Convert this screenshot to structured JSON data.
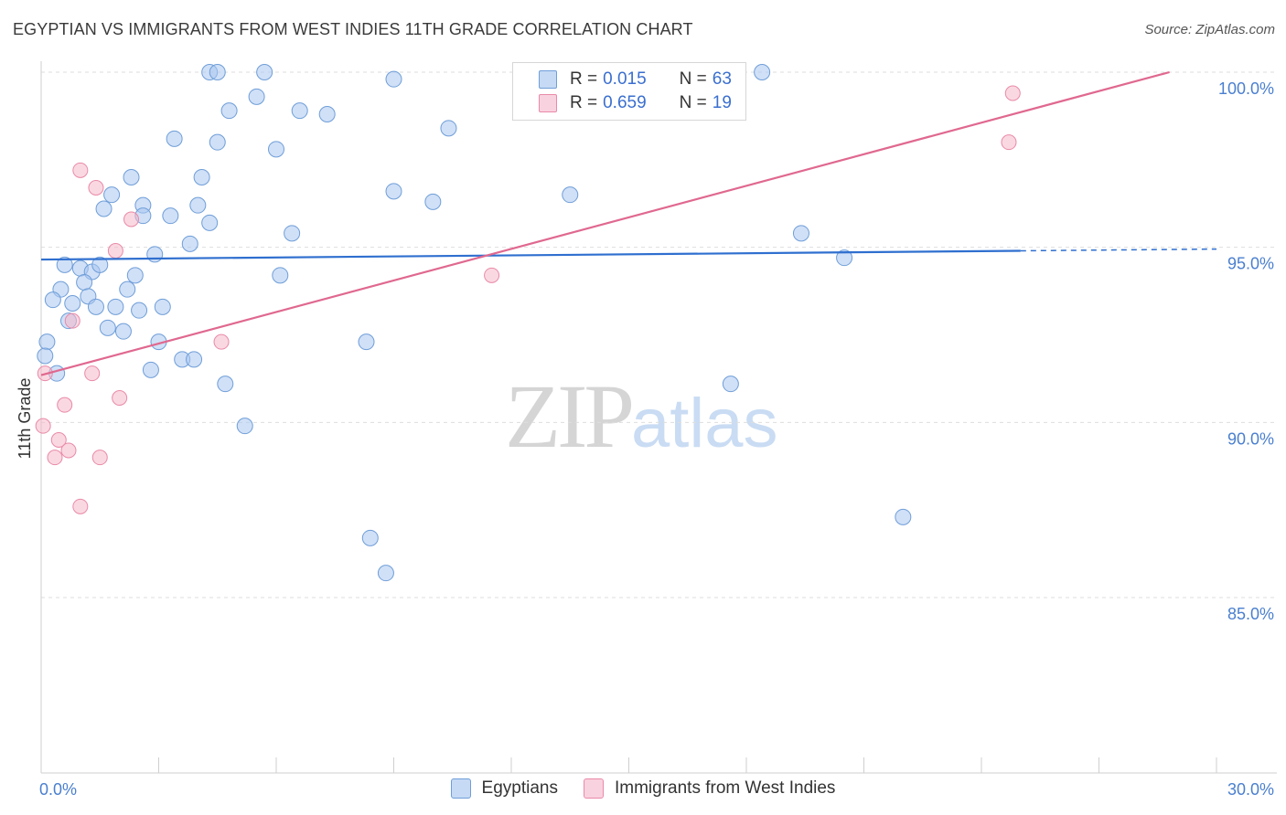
{
  "header": {
    "title": "EGYPTIAN VS IMMIGRANTS FROM WEST INDIES 11TH GRADE CORRELATION CHART",
    "source": "Source: ZipAtlas.com"
  },
  "watermark": {
    "zip": "ZIP",
    "atlas": "atlas"
  },
  "legend": {
    "rows": [
      {
        "r_label": "R =",
        "r_value": "0.015",
        "n_label": "N =",
        "n_value": "63",
        "color": "#a9c7f0"
      },
      {
        "r_label": "R =",
        "r_value": "0.659",
        "n_label": "N =",
        "n_value": "19",
        "color": "#f5b8cb"
      }
    ]
  },
  "bottom_legend": [
    {
      "label": "Egyptians",
      "color": "#a9c7f0"
    },
    {
      "label": "Immigrants from West Indies",
      "color": "#f5b8cb"
    }
  ],
  "chart_data": {
    "type": "scatter",
    "title": "EGYPTIAN VS IMMIGRANTS FROM WEST INDIES 11TH GRADE CORRELATION CHART",
    "xlabel": "",
    "ylabel": "11th Grade",
    "xlim": [
      0.0,
      30.0
    ],
    "ylim": [
      80.0,
      100.5
    ],
    "x_tick_labels": [
      {
        "value": 0.0,
        "label": "0.0%"
      },
      {
        "value": 30.0,
        "label": "30.0%"
      }
    ],
    "y_tick_labels": [
      {
        "value": 100.0,
        "label": "100.0%"
      },
      {
        "value": 95.0,
        "label": "95.0%"
      },
      {
        "value": 90.0,
        "label": "90.0%"
      },
      {
        "value": 85.0,
        "label": "85.0%"
      }
    ],
    "grid": true,
    "series": [
      {
        "name": "Egyptians",
        "color": "#a9c7f0",
        "edge": "#6f9ed8",
        "trend": {
          "x0": 0.0,
          "y0": 94.65,
          "x1": 25.0,
          "y1": 94.9,
          "dash_to_x": 30.0,
          "dash_to_y": 94.95,
          "color": "#2f6fcf"
        },
        "points": [
          {
            "x": 4.3,
            "y": 100.0
          },
          {
            "x": 4.5,
            "y": 100.0
          },
          {
            "x": 5.7,
            "y": 100.0
          },
          {
            "x": 9.0,
            "y": 99.8
          },
          {
            "x": 18.4,
            "y": 100.0
          },
          {
            "x": 5.5,
            "y": 99.3
          },
          {
            "x": 4.8,
            "y": 98.9
          },
          {
            "x": 6.6,
            "y": 98.9
          },
          {
            "x": 7.3,
            "y": 98.8
          },
          {
            "x": 10.4,
            "y": 98.4
          },
          {
            "x": 3.4,
            "y": 98.1
          },
          {
            "x": 4.5,
            "y": 98.0
          },
          {
            "x": 6.0,
            "y": 97.8
          },
          {
            "x": 2.3,
            "y": 97.0
          },
          {
            "x": 4.1,
            "y": 97.0
          },
          {
            "x": 1.8,
            "y": 96.5
          },
          {
            "x": 9.0,
            "y": 96.6
          },
          {
            "x": 13.5,
            "y": 96.5
          },
          {
            "x": 10.0,
            "y": 96.3
          },
          {
            "x": 1.6,
            "y": 96.1
          },
          {
            "x": 2.6,
            "y": 96.2
          },
          {
            "x": 4.0,
            "y": 96.2
          },
          {
            "x": 2.6,
            "y": 95.9
          },
          {
            "x": 3.3,
            "y": 95.9
          },
          {
            "x": 4.3,
            "y": 95.7
          },
          {
            "x": 6.4,
            "y": 95.4
          },
          {
            "x": 3.8,
            "y": 95.1
          },
          {
            "x": 19.4,
            "y": 95.4
          },
          {
            "x": 2.9,
            "y": 94.8
          },
          {
            "x": 0.6,
            "y": 94.5
          },
          {
            "x": 1.0,
            "y": 94.4
          },
          {
            "x": 1.3,
            "y": 94.3
          },
          {
            "x": 1.5,
            "y": 94.5
          },
          {
            "x": 2.4,
            "y": 94.2
          },
          {
            "x": 6.1,
            "y": 94.2
          },
          {
            "x": 20.5,
            "y": 94.7
          },
          {
            "x": 1.1,
            "y": 94.0
          },
          {
            "x": 0.5,
            "y": 93.8
          },
          {
            "x": 2.2,
            "y": 93.8
          },
          {
            "x": 1.2,
            "y": 93.6
          },
          {
            "x": 0.3,
            "y": 93.5
          },
          {
            "x": 0.8,
            "y": 93.4
          },
          {
            "x": 1.4,
            "y": 93.3
          },
          {
            "x": 1.9,
            "y": 93.3
          },
          {
            "x": 2.5,
            "y": 93.2
          },
          {
            "x": 3.1,
            "y": 93.3
          },
          {
            "x": 0.7,
            "y": 92.9
          },
          {
            "x": 1.7,
            "y": 92.7
          },
          {
            "x": 2.1,
            "y": 92.6
          },
          {
            "x": 0.15,
            "y": 92.3
          },
          {
            "x": 3.0,
            "y": 92.3
          },
          {
            "x": 8.3,
            "y": 92.3
          },
          {
            "x": 0.1,
            "y": 91.9
          },
          {
            "x": 3.6,
            "y": 91.8
          },
          {
            "x": 3.9,
            "y": 91.8
          },
          {
            "x": 0.4,
            "y": 91.4
          },
          {
            "x": 2.8,
            "y": 91.5
          },
          {
            "x": 4.7,
            "y": 91.1
          },
          {
            "x": 17.6,
            "y": 91.1
          },
          {
            "x": 5.2,
            "y": 89.9
          },
          {
            "x": 8.4,
            "y": 86.7
          },
          {
            "x": 8.8,
            "y": 85.7
          },
          {
            "x": 22.0,
            "y": 87.3
          }
        ]
      },
      {
        "name": "Immigrants from West Indies",
        "color": "#f5b8cb",
        "edge": "#e98aa8",
        "trend": {
          "x0": 0.0,
          "y0": 91.35,
          "x1": 28.8,
          "y1": 100.0,
          "color": "#e0688f"
        },
        "points": [
          {
            "x": 24.8,
            "y": 99.4
          },
          {
            "x": 24.7,
            "y": 98.0
          },
          {
            "x": 1.0,
            "y": 97.2
          },
          {
            "x": 1.4,
            "y": 96.7
          },
          {
            "x": 2.3,
            "y": 95.8
          },
          {
            "x": 1.9,
            "y": 94.9
          },
          {
            "x": 11.5,
            "y": 94.2
          },
          {
            "x": 0.8,
            "y": 92.9
          },
          {
            "x": 4.6,
            "y": 92.3
          },
          {
            "x": 0.1,
            "y": 91.4
          },
          {
            "x": 1.3,
            "y": 91.4
          },
          {
            "x": 2.0,
            "y": 90.7
          },
          {
            "x": 0.6,
            "y": 90.5
          },
          {
            "x": 0.05,
            "y": 89.9
          },
          {
            "x": 0.45,
            "y": 89.5
          },
          {
            "x": 0.7,
            "y": 89.2
          },
          {
            "x": 0.35,
            "y": 89.0
          },
          {
            "x": 1.5,
            "y": 89.0
          },
          {
            "x": 1.0,
            "y": 87.6
          }
        ]
      }
    ]
  }
}
